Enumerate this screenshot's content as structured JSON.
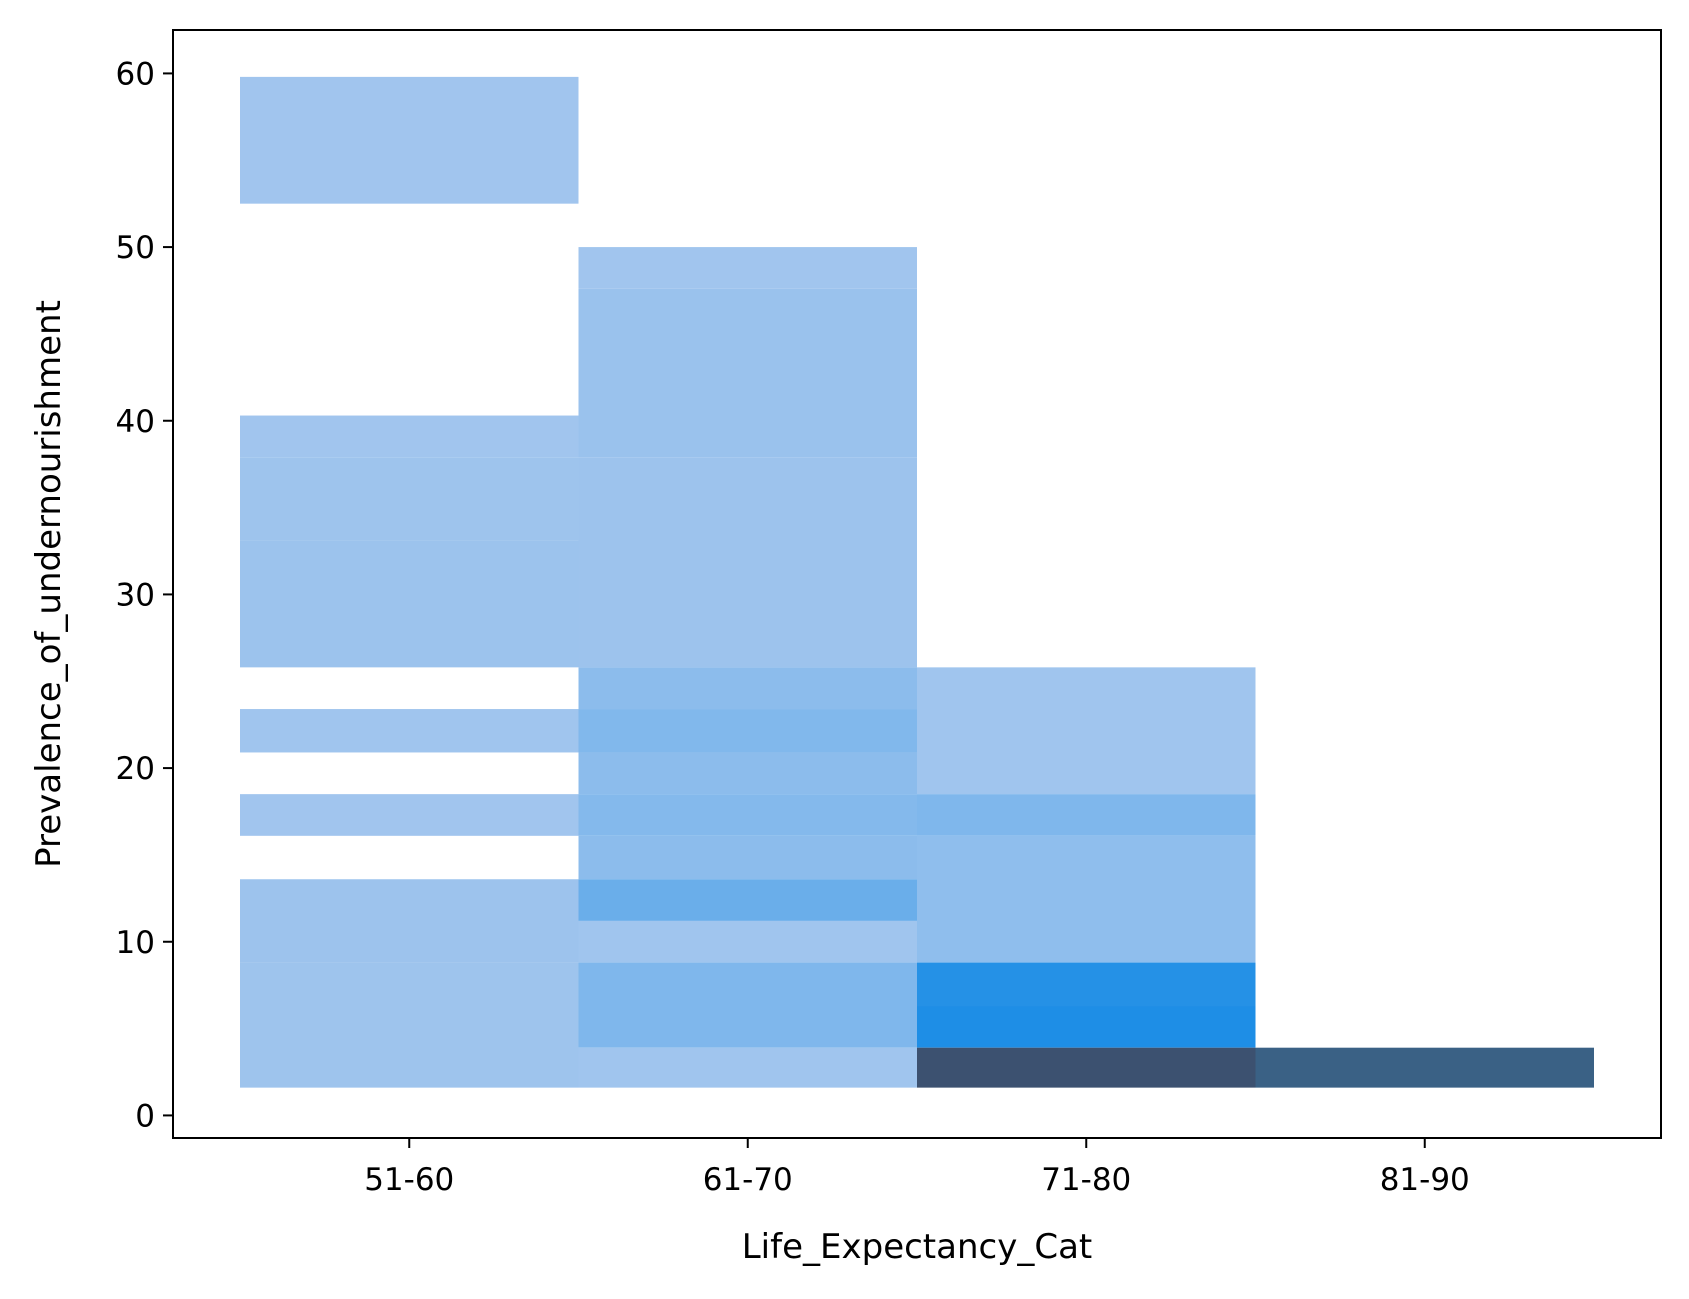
{
  "chart_data": {
    "type": "heatmap",
    "title": "",
    "xlabel": "Life_Expectancy_Cat",
    "ylabel": "Prevalence_of_undernourishment",
    "categories": [
      "51-60",
      "61-70",
      "71-80",
      "81-90"
    ],
    "y_ticks": [
      0,
      10,
      20,
      30,
      40,
      50,
      60
    ],
    "y_tick_labels": [
      "0",
      "10",
      "20",
      "30",
      "40",
      "50",
      "60"
    ],
    "ylim": [
      -1.3,
      62.5
    ],
    "grid": false,
    "legend": "none",
    "colors": {
      "low": "#a8c8ee",
      "high": "#1e8ee6",
      "dark_slate": "#3c5170",
      "dark_navy": "#3a6185"
    },
    "cells": [
      {
        "category": "51-60",
        "y0": 52.5,
        "y1": 59.8,
        "density": 0.05
      },
      {
        "category": "51-60",
        "y0": 37.9,
        "y1": 40.3,
        "density": 0.05
      },
      {
        "category": "51-60",
        "y0": 33.1,
        "y1": 37.9,
        "density": 0.07
      },
      {
        "category": "51-60",
        "y0": 25.8,
        "y1": 33.1,
        "density": 0.09
      },
      {
        "category": "51-60",
        "y0": 20.9,
        "y1": 23.4,
        "density": 0.06
      },
      {
        "category": "51-60",
        "y0": 16.1,
        "y1": 18.5,
        "density": 0.05
      },
      {
        "category": "51-60",
        "y0": 8.8,
        "y1": 13.6,
        "density": 0.08
      },
      {
        "category": "51-60",
        "y0": 1.6,
        "y1": 8.8,
        "density": 0.07
      },
      {
        "category": "61-70",
        "y0": 47.6,
        "y1": 50.0,
        "density": 0.05
      },
      {
        "category": "61-70",
        "y0": 37.9,
        "y1": 47.6,
        "density": 0.1
      },
      {
        "category": "61-70",
        "y0": 25.8,
        "y1": 37.9,
        "density": 0.08
      },
      {
        "category": "61-70",
        "y0": 23.4,
        "y1": 25.8,
        "density": 0.2
      },
      {
        "category": "61-70",
        "y0": 20.9,
        "y1": 23.4,
        "density": 0.28
      },
      {
        "category": "61-70",
        "y0": 18.5,
        "y1": 20.9,
        "density": 0.2
      },
      {
        "category": "61-70",
        "y0": 16.1,
        "y1": 18.5,
        "density": 0.26
      },
      {
        "category": "61-70",
        "y0": 13.6,
        "y1": 16.1,
        "density": 0.2
      },
      {
        "category": "61-70",
        "y0": 11.2,
        "y1": 13.6,
        "density": 0.45
      },
      {
        "category": "61-70",
        "y0": 8.8,
        "y1": 11.2,
        "density": 0.06
      },
      {
        "category": "61-70",
        "y0": 3.9,
        "y1": 8.8,
        "density": 0.3
      },
      {
        "category": "61-70",
        "y0": 1.6,
        "y1": 3.9,
        "density": 0.06
      },
      {
        "category": "71-80",
        "y0": 18.5,
        "y1": 25.8,
        "density": 0.06
      },
      {
        "category": "71-80",
        "y0": 16.1,
        "y1": 18.5,
        "density": 0.3
      },
      {
        "category": "71-80",
        "y0": 8.8,
        "y1": 16.1,
        "density": 0.18
      },
      {
        "category": "71-80",
        "y0": 6.3,
        "y1": 8.8,
        "density": 0.95
      },
      {
        "category": "71-80",
        "y0": 3.9,
        "y1": 6.3,
        "density": 1.0
      },
      {
        "category": "71-80",
        "y0": 1.6,
        "y1": 3.9,
        "color": "#3c5170"
      },
      {
        "category": "81-90",
        "y0": 1.6,
        "y1": 3.9,
        "color": "#3a6185"
      }
    ]
  }
}
